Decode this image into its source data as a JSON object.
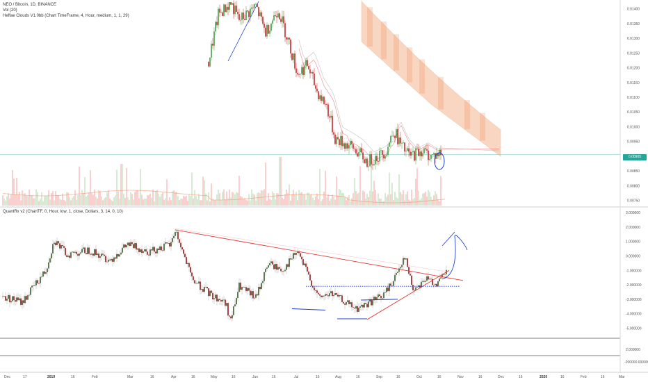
{
  "legend_top": [
    "NEO / Bitcoin, 1D, BINANCE",
    "Vol (20)",
    "Heffae Clouds V1.0bb (Chart TimeFrame, 4, Hour, medium, 1, 1, 29)"
  ],
  "legend_bottom": "QuantRx v2 (ChartTF, 0, Hour, low, 1, close, Dollars, 3, 14, 0, 10)",
  "price_tag": "0.00905",
  "colors": {
    "up": "#3a5a2a",
    "down": "#8b1a1a",
    "candle_up": "#43a047",
    "candle_down": "#c62828",
    "cloud": "#f4b58f",
    "red_line": "#e53935",
    "blue_annot": "#1e3dd4",
    "teal_line": "#26a69a",
    "vol_up": "#c5e1c1",
    "vol_down": "#f8bbb8"
  },
  "axis": {
    "price_ticks": [
      "0.01400",
      "0.01350",
      "0.01300",
      "0.01250",
      "0.01200",
      "0.01150",
      "0.01100",
      "0.01050",
      "0.01000",
      "0.00950",
      "0.00900",
      "0.00850",
      "0.00800",
      "0.00750"
    ],
    "osc_ticks": [
      "3.000000",
      "2.000000",
      "1.000000",
      "0.000000",
      "-1.000000",
      "-2.000000",
      "-3.000000",
      "-4.000000",
      "-5.000000"
    ],
    "extra_ticks": [
      "2.000000",
      "-200000.000000"
    ],
    "x_ticks": [
      {
        "label": "Dec",
        "bold": false
      },
      {
        "label": "17",
        "bold": false
      },
      {
        "label": "2019",
        "bold": true
      },
      {
        "label": "16",
        "bold": false
      },
      {
        "label": "Feb",
        "bold": false
      },
      {
        "label": "Mar",
        "bold": false
      },
      {
        "label": "16",
        "bold": false
      },
      {
        "label": "Apr",
        "bold": false
      },
      {
        "label": "16",
        "bold": false
      },
      {
        "label": "May",
        "bold": false
      },
      {
        "label": "16",
        "bold": false
      },
      {
        "label": "Jun",
        "bold": false
      },
      {
        "label": "16",
        "bold": false
      },
      {
        "label": "Jul",
        "bold": false
      },
      {
        "label": "16",
        "bold": false
      },
      {
        "label": "Aug",
        "bold": false
      },
      {
        "label": "16",
        "bold": false
      },
      {
        "label": "Sep",
        "bold": false
      },
      {
        "label": "16",
        "bold": false
      },
      {
        "label": "Oct",
        "bold": false
      },
      {
        "label": "16",
        "bold": false
      },
      {
        "label": "Nov",
        "bold": false
      },
      {
        "label": "16",
        "bold": false
      },
      {
        "label": "Dec",
        "bold": false
      },
      {
        "label": "16",
        "bold": false
      },
      {
        "label": "2020",
        "bold": true
      },
      {
        "label": "16",
        "bold": false
      },
      {
        "label": "Feb",
        "bold": false
      },
      {
        "label": "16",
        "bold": false
      },
      {
        "label": "Mar",
        "bold": false
      }
    ]
  },
  "chart_data": [
    {
      "type": "candlestick",
      "title": "NEO / Bitcoin, 1D, BINANCE",
      "ylim": [
        0.0073,
        0.0143
      ],
      "price_path": [
        {
          "x": "Apr 28",
          "y": 0.0122
        },
        {
          "x": "May 5",
          "y": 0.0138
        },
        {
          "x": "May 14",
          "y": 0.0142
        },
        {
          "x": "May 20",
          "y": 0.0136
        },
        {
          "x": "Jun 1",
          "y": 0.0141
        },
        {
          "x": "Jun 8",
          "y": 0.0132
        },
        {
          "x": "Jun 17",
          "y": 0.014
        },
        {
          "x": "Jun 25",
          "y": 0.0128
        },
        {
          "x": "Jul 1",
          "y": 0.0118
        },
        {
          "x": "Jul 8",
          "y": 0.0121
        },
        {
          "x": "Jul 15",
          "y": 0.0112
        },
        {
          "x": "Jul 22",
          "y": 0.0107
        },
        {
          "x": "Jul 28",
          "y": 0.0096
        },
        {
          "x": "Aug 5",
          "y": 0.0094
        },
        {
          "x": "Aug 12",
          "y": 0.0092
        },
        {
          "x": "Aug 20",
          "y": 0.0088
        },
        {
          "x": "Aug 28",
          "y": 0.009
        },
        {
          "x": "Sep 3",
          "y": 0.0092
        },
        {
          "x": "Sep 8",
          "y": 0.0099
        },
        {
          "x": "Sep 14",
          "y": 0.0093
        },
        {
          "x": "Sep 20",
          "y": 0.009
        },
        {
          "x": "Sep 28",
          "y": 0.0092
        },
        {
          "x": "Oct 5",
          "y": 0.009
        },
        {
          "x": "Oct 12",
          "y": 0.0091
        }
      ]
    },
    {
      "type": "line",
      "title": "QuantRx v2 (ChartTF, 0, Hour, low, 1, close, Dollars, 3, 14, 0, 10)",
      "ylim": [
        -5.5,
        3.0
      ],
      "oscillator_path": [
        {
          "x": "Dec 1",
          "y": -2.8
        },
        {
          "x": "Dec 15",
          "y": -3.2
        },
        {
          "x": "Jan 1",
          "y": -1.0
        },
        {
          "x": "Jan 7",
          "y": 1.1
        },
        {
          "x": "Jan 16",
          "y": 0.1
        },
        {
          "x": "Feb 1",
          "y": 0.4
        },
        {
          "x": "Feb 16",
          "y": -0.3
        },
        {
          "x": "Mar 1",
          "y": 0.8
        },
        {
          "x": "Mar 16",
          "y": 0.3
        },
        {
          "x": "Apr 1",
          "y": 0.8
        },
        {
          "x": "Apr 4",
          "y": 1.8
        },
        {
          "x": "Apr 16",
          "y": -1.6
        },
        {
          "x": "May 1",
          "y": -2.8
        },
        {
          "x": "May 10",
          "y": -3.2
        },
        {
          "x": "May 14",
          "y": -4.5
        },
        {
          "x": "May 20",
          "y": -2.1
        },
        {
          "x": "Jun 1",
          "y": -2.9
        },
        {
          "x": "Jun 10",
          "y": -0.5
        },
        {
          "x": "Jun 20",
          "y": -1.0
        },
        {
          "x": "Jul 1",
          "y": 0.3
        },
        {
          "x": "Jul 8",
          "y": -1.2
        },
        {
          "x": "Jul 16",
          "y": -2.9
        },
        {
          "x": "Jul 25",
          "y": -2.6
        },
        {
          "x": "Aug 1",
          "y": -3.0
        },
        {
          "x": "Aug 12",
          "y": -3.7
        },
        {
          "x": "Aug 20",
          "y": -3.3
        },
        {
          "x": "Sep 1",
          "y": -2.7
        },
        {
          "x": "Sep 8",
          "y": -1.7
        },
        {
          "x": "Sep 16",
          "y": 0.0
        },
        {
          "x": "Sep 22",
          "y": -2.3
        },
        {
          "x": "Oct 1",
          "y": -1.6
        },
        {
          "x": "Oct 10",
          "y": -1.9
        },
        {
          "x": "Oct 16",
          "y": -1.1
        }
      ],
      "trendline_down": [
        {
          "x": "Apr 4",
          "y": 1.8
        },
        {
          "x": "Oct 28",
          "y": -1.7
        }
      ],
      "trendline_up": [
        {
          "x": "Aug 20",
          "y": -4.4
        },
        {
          "x": "Oct 18",
          "y": -1.0
        }
      ],
      "support_dotted": -2.1
    }
  ]
}
